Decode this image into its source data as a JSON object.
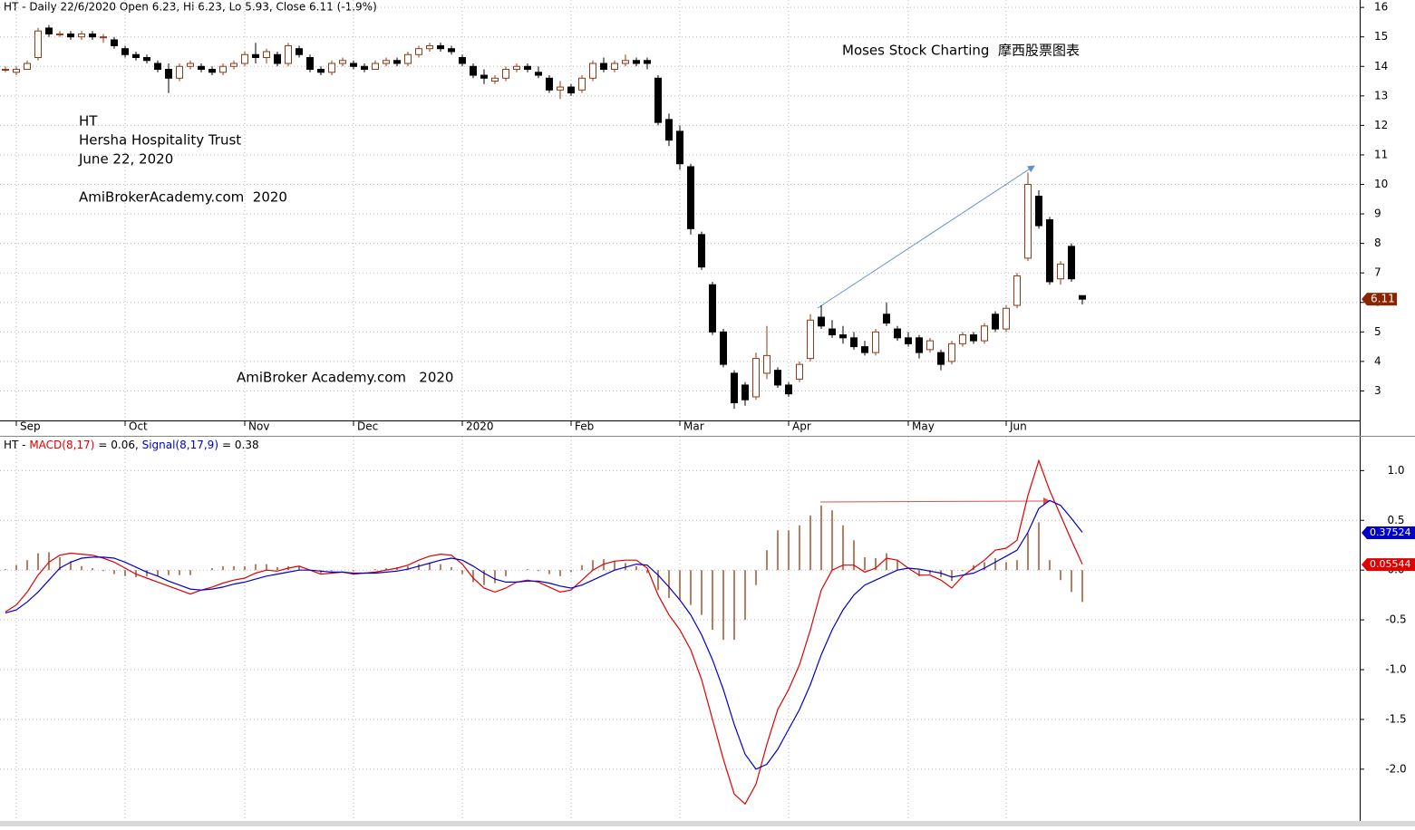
{
  "chart_data": [
    {
      "type": "candlestick",
      "title": "HT - Daily 22/6/2020 Open 6.23, Hi 6.23, Lo 5.93, Close 6.11 (-1.9%)",
      "watermark": "Moses Stock Charting  摩西股票图表",
      "annotations": [
        "HT",
        "Hersha Hospitality Trust",
        "June 22, 2020",
        "AmiBrokerAcademy.com  2020",
        "AmiBroker Academy.com   2020"
      ],
      "up_color": "#8b3a1a",
      "down_color": "#000000",
      "last_label_color": "#8b2500",
      "candles": [
        [
          13.9,
          14.0,
          13.8,
          13.9
        ],
        [
          13.8,
          14.0,
          13.7,
          13.9
        ],
        [
          13.9,
          14.2,
          13.9,
          14.1
        ],
        [
          14.3,
          15.3,
          14.2,
          15.2
        ],
        [
          15.3,
          15.4,
          15.0,
          15.1
        ],
        [
          15.1,
          15.2,
          15.0,
          15.1
        ],
        [
          15.1,
          15.2,
          14.9,
          15.0
        ],
        [
          15.0,
          15.2,
          14.9,
          15.1
        ],
        [
          15.1,
          15.2,
          14.9,
          15.0
        ],
        [
          15.0,
          15.1,
          14.8,
          15.0
        ],
        [
          14.9,
          15.0,
          14.6,
          14.7
        ],
        [
          14.6,
          14.7,
          14.3,
          14.4
        ],
        [
          14.4,
          14.5,
          14.2,
          14.3
        ],
        [
          14.3,
          14.4,
          14.1,
          14.2
        ],
        [
          14.1,
          14.2,
          13.8,
          13.9
        ],
        [
          13.9,
          14.1,
          13.1,
          13.6
        ],
        [
          13.6,
          14.1,
          13.5,
          14.0
        ],
        [
          14.0,
          14.2,
          13.9,
          14.1
        ],
        [
          14.0,
          14.1,
          13.8,
          13.9
        ],
        [
          13.9,
          14.0,
          13.7,
          13.8
        ],
        [
          13.8,
          14.1,
          13.7,
          14.0
        ],
        [
          14.0,
          14.2,
          13.9,
          14.1
        ],
        [
          14.1,
          14.5,
          14.0,
          14.4
        ],
        [
          14.4,
          14.8,
          14.1,
          14.3
        ],
        [
          14.3,
          14.6,
          14.1,
          14.5
        ],
        [
          14.4,
          14.5,
          14.0,
          14.1
        ],
        [
          14.1,
          14.8,
          14.0,
          14.7
        ],
        [
          14.6,
          14.7,
          14.3,
          14.4
        ],
        [
          14.3,
          14.4,
          13.8,
          13.9
        ],
        [
          13.9,
          14.0,
          13.7,
          13.8
        ],
        [
          13.8,
          14.2,
          13.7,
          14.1
        ],
        [
          14.1,
          14.3,
          14.0,
          14.2
        ],
        [
          14.1,
          14.2,
          13.9,
          14.0
        ],
        [
          14.0,
          14.1,
          13.8,
          13.9
        ],
        [
          13.9,
          14.2,
          13.9,
          14.1
        ],
        [
          14.1,
          14.3,
          14.0,
          14.2
        ],
        [
          14.2,
          14.3,
          14.0,
          14.1
        ],
        [
          14.1,
          14.5,
          14.0,
          14.4
        ],
        [
          14.4,
          14.7,
          14.3,
          14.6
        ],
        [
          14.6,
          14.8,
          14.5,
          14.7
        ],
        [
          14.7,
          14.8,
          14.5,
          14.6
        ],
        [
          14.6,
          14.7,
          14.4,
          14.5
        ],
        [
          14.3,
          14.4,
          14.0,
          14.1
        ],
        [
          14.0,
          14.1,
          13.6,
          13.7
        ],
        [
          13.7,
          13.9,
          13.4,
          13.6
        ],
        [
          13.5,
          13.7,
          13.4,
          13.6
        ],
        [
          13.6,
          14.0,
          13.5,
          13.9
        ],
        [
          13.9,
          14.1,
          13.8,
          14.0
        ],
        [
          14.0,
          14.1,
          13.8,
          13.9
        ],
        [
          13.8,
          14.0,
          13.6,
          13.7
        ],
        [
          13.6,
          13.7,
          13.1,
          13.2
        ],
        [
          13.2,
          13.5,
          12.9,
          13.3
        ],
        [
          13.3,
          13.4,
          13.0,
          13.1
        ],
        [
          13.2,
          13.7,
          13.1,
          13.6
        ],
        [
          13.6,
          14.2,
          13.5,
          14.1
        ],
        [
          14.1,
          14.3,
          13.8,
          13.9
        ],
        [
          13.9,
          14.2,
          13.8,
          14.1
        ],
        [
          14.1,
          14.4,
          14.0,
          14.2
        ],
        [
          14.2,
          14.3,
          14.0,
          14.1
        ],
        [
          14.2,
          14.3,
          13.9,
          14.1
        ],
        [
          13.6,
          13.7,
          12.0,
          12.1
        ],
        [
          12.2,
          12.4,
          11.3,
          11.5
        ],
        [
          11.8,
          12.0,
          10.5,
          10.7
        ],
        [
          10.6,
          10.7,
          8.3,
          8.5
        ],
        [
          8.3,
          8.4,
          7.1,
          7.2
        ],
        [
          6.6,
          6.7,
          4.9,
          5.0
        ],
        [
          5.0,
          5.1,
          3.8,
          3.9
        ],
        [
          3.6,
          3.7,
          2.4,
          2.6
        ],
        [
          3.2,
          3.3,
          2.5,
          2.7
        ],
        [
          2.8,
          4.3,
          2.7,
          4.1
        ],
        [
          3.6,
          5.2,
          3.4,
          4.2
        ],
        [
          3.7,
          3.8,
          3.1,
          3.2
        ],
        [
          3.2,
          3.3,
          2.8,
          2.9
        ],
        [
          3.4,
          4.0,
          3.3,
          3.9
        ],
        [
          4.1,
          5.6,
          4.0,
          5.4
        ],
        [
          5.5,
          5.9,
          5.1,
          5.2
        ],
        [
          5.1,
          5.4,
          4.8,
          4.9
        ],
        [
          4.9,
          5.2,
          4.6,
          4.8
        ],
        [
          4.8,
          5.0,
          4.4,
          4.5
        ],
        [
          4.5,
          4.7,
          4.2,
          4.3
        ],
        [
          4.3,
          5.1,
          4.2,
          5.0
        ],
        [
          5.6,
          6.0,
          5.2,
          5.3
        ],
        [
          5.1,
          5.2,
          4.7,
          4.8
        ],
        [
          4.8,
          5.0,
          4.5,
          4.6
        ],
        [
          4.8,
          4.9,
          4.1,
          4.3
        ],
        [
          4.4,
          4.8,
          4.3,
          4.7
        ],
        [
          4.3,
          4.4,
          3.7,
          3.9
        ],
        [
          4.0,
          4.7,
          3.9,
          4.6
        ],
        [
          4.6,
          5.0,
          4.5,
          4.9
        ],
        [
          4.9,
          5.0,
          4.6,
          4.7
        ],
        [
          4.7,
          5.3,
          4.6,
          5.2
        ],
        [
          5.6,
          5.7,
          5.0,
          5.1
        ],
        [
          5.1,
          5.9,
          5.0,
          5.8
        ],
        [
          5.9,
          7.0,
          5.8,
          6.9
        ],
        [
          7.5,
          10.4,
          7.4,
          10.0
        ],
        [
          9.6,
          9.8,
          8.5,
          8.6
        ],
        [
          8.8,
          8.9,
          6.6,
          6.7
        ],
        [
          6.8,
          7.4,
          6.6,
          7.3
        ],
        [
          7.9,
          8.0,
          6.7,
          6.8
        ],
        [
          6.23,
          6.23,
          5.93,
          6.11
        ]
      ],
      "xlim": [
        -0.5,
        124.5
      ],
      "xticks": [
        {
          "value": 1,
          "label": "Sep"
        },
        {
          "value": 11,
          "label": "Oct"
        },
        {
          "value": 22,
          "label": "Nov"
        },
        {
          "value": 32,
          "label": "Dec"
        },
        {
          "value": 42,
          "label": "2020"
        },
        {
          "value": 52,
          "label": "Feb"
        },
        {
          "value": 62,
          "label": "Mar"
        },
        {
          "value": 72,
          "label": "Apr"
        },
        {
          "value": 83,
          "label": "May"
        },
        {
          "value": 92,
          "label": "Jun"
        }
      ],
      "ylim": [
        2,
        16.25
      ],
      "yticks": [
        3,
        4,
        5,
        6,
        7,
        8,
        9,
        10,
        11,
        12,
        13,
        14,
        15,
        16
      ],
      "grid": true
    },
    {
      "type": "macd",
      "prefix": "HT - ",
      "series": [
        {
          "name": "MACD(8,17)",
          "color": "#e00000",
          "readout": "= 0.06,",
          "badge": 0.05544,
          "values": [
            -0.42,
            -0.35,
            -0.22,
            -0.05,
            0.08,
            0.15,
            0.17,
            0.16,
            0.15,
            0.12,
            0.08,
            0.02,
            -0.04,
            -0.08,
            -0.12,
            -0.16,
            -0.2,
            -0.24,
            -0.2,
            -0.17,
            -0.13,
            -0.1,
            -0.08,
            -0.03,
            0,
            -0.01,
            0.02,
            0.04,
            0,
            -0.04,
            -0.03,
            -0.02,
            -0.04,
            -0.03,
            -0.02,
            0,
            0.02,
            0.05,
            0.1,
            0.14,
            0.16,
            0.15,
            0.06,
            -0.08,
            -0.18,
            -0.22,
            -0.18,
            -0.12,
            -0.1,
            -0.12,
            -0.17,
            -0.22,
            -0.2,
            -0.1,
            0,
            0.06,
            0.09,
            0.1,
            0.1,
            0.02,
            -0.25,
            -0.45,
            -0.6,
            -0.8,
            -1.1,
            -1.5,
            -1.9,
            -2.25,
            -2.35,
            -2.15,
            -1.75,
            -1.4,
            -1.2,
            -0.95,
            -0.6,
            -0.2,
            0,
            0.05,
            0.05,
            -0.02,
            0.02,
            0.12,
            0.1,
            0.02,
            -0.05,
            -0.05,
            -0.1,
            -0.18,
            -0.06,
            0.02,
            0.1,
            0.2,
            0.22,
            0.3,
            0.75,
            1.1,
            0.8,
            0.55,
            0.3,
            0.06
          ]
        },
        {
          "name": "Signal(8,17,9)",
          "color": "#0000cc",
          "readout": "= 0.38",
          "badge": 0.37524,
          "values": [
            -0.43,
            -0.4,
            -0.32,
            -0.22,
            -0.1,
            0.02,
            0.08,
            0.12,
            0.13,
            0.13,
            0.12,
            0.08,
            0.03,
            -0.02,
            -0.06,
            -0.11,
            -0.15,
            -0.19,
            -0.2,
            -0.19,
            -0.17,
            -0.14,
            -0.12,
            -0.09,
            -0.06,
            -0.04,
            -0.02,
            0,
            0,
            -0.01,
            -0.02,
            -0.02,
            -0.03,
            -0.03,
            -0.03,
            -0.02,
            -0.01,
            0.01,
            0.04,
            0.07,
            0.1,
            0.12,
            0.1,
            0.04,
            -0.03,
            -0.09,
            -0.12,
            -0.12,
            -0.11,
            -0.11,
            -0.13,
            -0.16,
            -0.18,
            -0.15,
            -0.1,
            -0.05,
            0,
            0.03,
            0.06,
            0.05,
            -0.05,
            -0.17,
            -0.3,
            -0.45,
            -0.65,
            -0.9,
            -1.2,
            -1.55,
            -1.85,
            -2,
            -1.95,
            -1.8,
            -1.6,
            -1.4,
            -1.15,
            -0.85,
            -0.6,
            -0.4,
            -0.25,
            -0.15,
            -0.1,
            -0.05,
            0,
            0.02,
            0.01,
            -0.01,
            -0.03,
            -0.07,
            -0.05,
            -0.03,
            0.02,
            0.08,
            0.14,
            0.2,
            0.38,
            0.62,
            0.7,
            0.65,
            0.52,
            0.38
          ]
        }
      ],
      "histogram": {
        "color": "#a0522d",
        "values": [
          0.01,
          0.05,
          0.1,
          0.17,
          0.18,
          0.13,
          0.09,
          0.04,
          0.02,
          -0.01,
          -0.04,
          -0.06,
          -0.07,
          -0.06,
          -0.06,
          -0.05,
          -0.05,
          -0.05,
          0,
          0.02,
          0.04,
          0.04,
          0.04,
          0.06,
          0.06,
          0.03,
          0.04,
          0.04,
          0,
          -0.03,
          -0.01,
          0,
          -0.01,
          0,
          0.01,
          0.02,
          0.03,
          0.04,
          0.06,
          0.07,
          0.06,
          0.03,
          -0.04,
          -0.12,
          -0.15,
          -0.13,
          -0.06,
          0,
          0.01,
          -0.01,
          -0.04,
          -0.06,
          -0.02,
          0.05,
          0.1,
          0.11,
          0.09,
          0.07,
          0.04,
          -0.03,
          -0.2,
          -0.28,
          -0.3,
          -0.35,
          -0.45,
          -0.6,
          -0.7,
          -0.7,
          -0.5,
          -0.15,
          0.2,
          0.4,
          0.4,
          0.45,
          0.55,
          0.65,
          0.6,
          0.45,
          0.3,
          0.13,
          0.12,
          0.17,
          0.1,
          0,
          -0.06,
          -0.04,
          -0.07,
          -0.11,
          -0.01,
          0.05,
          0.08,
          0.12,
          0.08,
          0.1,
          0.37,
          0.48,
          0.1,
          -0.1,
          -0.22,
          -0.32
        ]
      },
      "ylim": [
        -2.52,
        1.34
      ],
      "yticks": [
        {
          "value": 1,
          "label": "1.0"
        },
        0.5,
        {
          "value": 0,
          "label": "0.0"
        },
        -0.5,
        {
          "value": -1,
          "label": "-1.0"
        },
        -1.5,
        {
          "value": -2,
          "label": "-2.0"
        }
      ],
      "grid": true
    }
  ]
}
